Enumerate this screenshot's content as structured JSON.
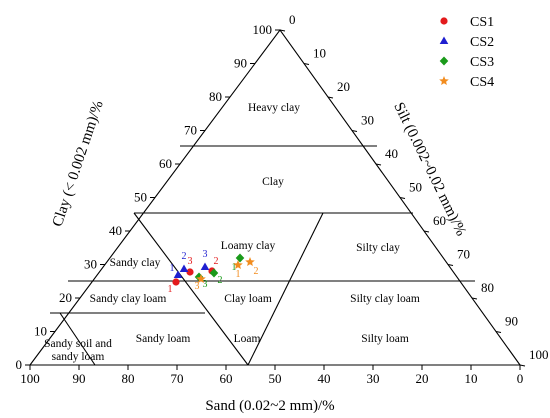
{
  "chart_data": {
    "type": "scatter",
    "subtype": "ternary",
    "axes": {
      "sand": {
        "title": "Sand (0.02~2 mm)/%",
        "ticks": [
          100,
          90,
          80,
          70,
          60,
          50,
          40,
          30,
          20,
          10,
          0
        ]
      },
      "clay": {
        "title": "Clay (< 0.002 mm)/%",
        "ticks": [
          0,
          10,
          20,
          30,
          40,
          50,
          60,
          70,
          80,
          90,
          100
        ]
      },
      "silt": {
        "title": "Silt (0.002~0.02 mm)/%",
        "ticks": [
          0,
          10,
          20,
          30,
          40,
          50,
          60,
          70,
          80,
          90,
          100
        ]
      }
    },
    "regions": [
      {
        "name": "Heavy clay",
        "label": "Heavy clay"
      },
      {
        "name": "Clay",
        "label": "Clay"
      },
      {
        "name": "Sandy clay",
        "label": "Sandy clay"
      },
      {
        "name": "Loamy clay",
        "label": "Loamy clay"
      },
      {
        "name": "Silty clay",
        "label": "Silty clay"
      },
      {
        "name": "Sandy clay loam",
        "label": "Sandy clay loam"
      },
      {
        "name": "Clay loam",
        "label": "Clay loam"
      },
      {
        "name": "Silty clay loam",
        "label": "Silty clay loam"
      },
      {
        "name": "Sandy soil and sandy loam",
        "label": "Sandy soil and\nsandy loam"
      },
      {
        "name": "Sandy loam",
        "label": "Sandy loam"
      },
      {
        "name": "Loam",
        "label": "Loam"
      },
      {
        "name": "Silty loam",
        "label": "Silty loam"
      }
    ],
    "series": [
      {
        "name": "CS1",
        "color": "#e31a1c",
        "marker": "circle",
        "points": [
          {
            "label": "1",
            "sand": 70.5,
            "clay": 23
          },
          {
            "label": "2",
            "sand": 63,
            "clay": 26.5
          },
          {
            "label": "3",
            "sand": 67,
            "clay": 26
          }
        ]
      },
      {
        "name": "CS2",
        "color": "#1f1fd0",
        "marker": "triangle",
        "points": [
          {
            "label": "1",
            "sand": 70,
            "clay": 25
          },
          {
            "label": "2",
            "sand": 69,
            "clay": 27
          },
          {
            "label": "3",
            "sand": 65,
            "clay": 27.5
          }
        ]
      },
      {
        "name": "CS3",
        "color": "#1a9a1a",
        "marker": "diamond",
        "points": [
          {
            "label": "1",
            "sand": 59,
            "clay": 30
          },
          {
            "label": "2",
            "sand": 63,
            "clay": 26
          },
          {
            "label": "3",
            "sand": 66,
            "clay": 25.5
          }
        ]
      },
      {
        "name": "CS4",
        "color": "#f28c1e",
        "marker": "star",
        "points": [
          {
            "label": "1",
            "sand": 58.5,
            "clay": 28
          },
          {
            "label": "2",
            "sand": 56,
            "clay": 29.5
          },
          {
            "label": "3",
            "sand": 66.5,
            "clay": 24.5
          }
        ]
      }
    ],
    "legend": {
      "position": "top-right",
      "entries": [
        "CS1",
        "CS2",
        "CS3",
        "CS4"
      ]
    }
  }
}
